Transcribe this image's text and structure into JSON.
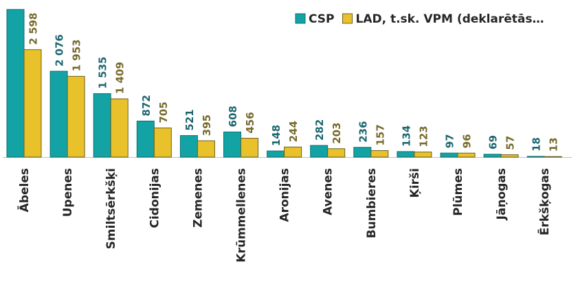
{
  "chart_data": {
    "type": "bar",
    "categories": [
      "Ābeles",
      "Upenes",
      "Smiltsērkšķi",
      "Cidonijas",
      "Zemenes",
      "Krūmmellenes",
      "Aronijas",
      "Avenes",
      "Bumbieres",
      "Ķirši",
      "Plūmes",
      "Jāņogas",
      "Ērkšķogas"
    ],
    "series": [
      {
        "name": "CSP",
        "color": "#13a3a5",
        "label_color": "#1d6670",
        "values": [
          3570,
          2076,
          1535,
          872,
          521,
          608,
          148,
          282,
          236,
          134,
          97,
          69,
          18
        ],
        "value_labels": [
          null,
          "2 076",
          "1 535",
          "872",
          "521",
          "608",
          "148",
          "282",
          "236",
          "134",
          "97",
          "69",
          "18"
        ]
      },
      {
        "name": "LAD, t.sk. VPM (deklarētās…",
        "color": "#e9c22b",
        "label_color": "#776a2c",
        "values": [
          2598,
          1953,
          1409,
          705,
          395,
          456,
          244,
          203,
          157,
          123,
          96,
          57,
          13
        ],
        "value_labels": [
          "2 598",
          "1 953",
          "1 409",
          "705",
          "395",
          "456",
          "244",
          "203",
          "157",
          "123",
          "96",
          "57",
          "13"
        ]
      }
    ],
    "ylim": [
      0,
      3600
    ],
    "legend": "top-right"
  }
}
